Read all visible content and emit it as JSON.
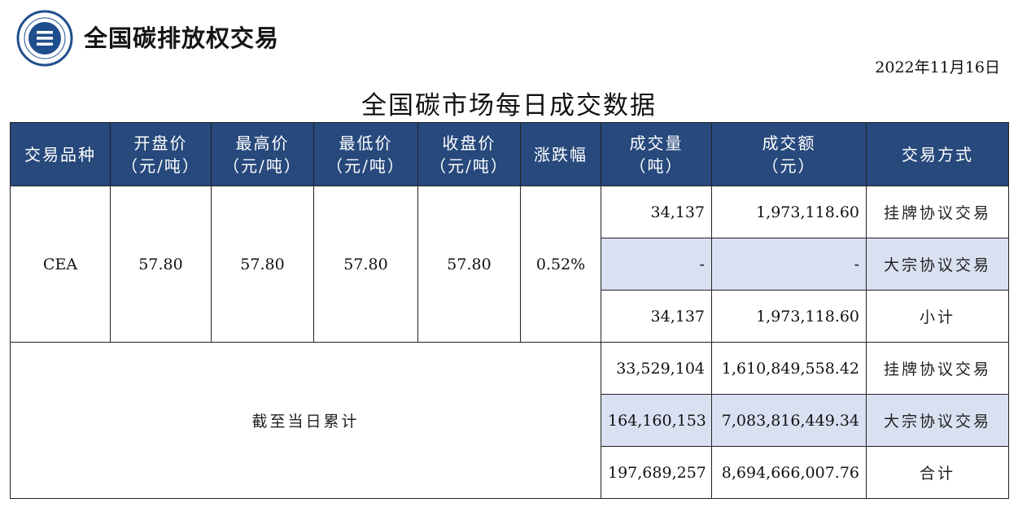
{
  "header": {
    "brand": "全国碳排放权交易",
    "date": "2022年11月16日",
    "title": "全国碳市场每日成交数据",
    "logo_color": "#1f4e8c"
  },
  "table": {
    "columns": [
      {
        "label": "交易品种",
        "unit": ""
      },
      {
        "label": "开盘价",
        "unit": "（元/吨）"
      },
      {
        "label": "最高价",
        "unit": "（元/吨）"
      },
      {
        "label": "最低价",
        "unit": "（元/吨）"
      },
      {
        "label": "收盘价",
        "unit": "（元/吨）"
      },
      {
        "label": "涨跌幅",
        "unit": ""
      },
      {
        "label": "成交量",
        "unit": "（吨）"
      },
      {
        "label": "成交额",
        "unit": "（元）"
      },
      {
        "label": "交易方式",
        "unit": ""
      }
    ],
    "daily": {
      "product": "CEA",
      "open": "57.80",
      "high": "57.80",
      "low": "57.80",
      "close": "57.80",
      "change": "0.52%",
      "rows": [
        {
          "volume": "34,137",
          "amount": "1,973,118.60",
          "method": "挂牌协议交易"
        },
        {
          "volume": "-",
          "amount": "-",
          "method": "大宗协议交易"
        },
        {
          "volume": "34,137",
          "amount": "1,973,118.60",
          "method": "小计"
        }
      ]
    },
    "cumulative": {
      "label": "截至当日累计",
      "rows": [
        {
          "volume": "33,529,104",
          "amount": "1,610,849,558.42",
          "method": "挂牌协议交易"
        },
        {
          "volume": "164,160,153",
          "amount": "7,083,816,449.34",
          "method": "大宗协议交易"
        },
        {
          "volume": "197,689,257",
          "amount": "8,694,666,007.76",
          "method": "合计"
        }
      ]
    },
    "header_bg": "#27497c",
    "highlight_bg": "#d9e0f1"
  }
}
